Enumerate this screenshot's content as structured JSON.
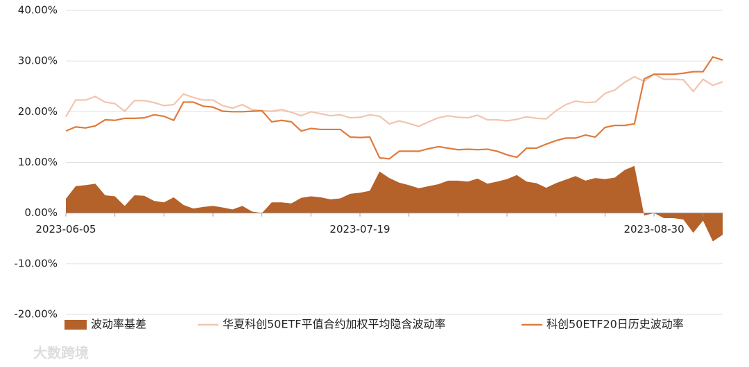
{
  "chart_data": {
    "type": "area_line",
    "categories": [
      "2023-06-05",
      null,
      null,
      null,
      null,
      null,
      null,
      null,
      null,
      null,
      null,
      null,
      null,
      null,
      null,
      null,
      null,
      null,
      null,
      null,
      null,
      null,
      null,
      null,
      null,
      null,
      null,
      null,
      null,
      null,
      "2023-07-19",
      null,
      null,
      null,
      null,
      null,
      null,
      null,
      null,
      null,
      null,
      null,
      null,
      null,
      null,
      null,
      null,
      null,
      null,
      null,
      null,
      null,
      null,
      null,
      null,
      null,
      null,
      null,
      null,
      null,
      "2023-08-30",
      null,
      null,
      null,
      null,
      null,
      null,
      null
    ],
    "series": [
      {
        "name": "波动率基差",
        "kind": "area",
        "color": "#b5612a",
        "values": [
          2.8,
          5.3,
          5.5,
          5.8,
          3.5,
          3.3,
          1.4,
          3.5,
          3.4,
          2.4,
          2.1,
          3.1,
          1.6,
          0.9,
          1.2,
          1.4,
          1.1,
          0.7,
          1.4,
          0.3,
          0.0,
          2.1,
          2.1,
          1.9,
          3.0,
          3.3,
          3.1,
          2.7,
          2.9,
          3.8,
          4.0,
          4.4,
          8.2,
          6.9,
          6.0,
          5.5,
          4.9,
          5.3,
          5.7,
          6.4,
          6.4,
          6.2,
          6.8,
          5.8,
          6.2,
          6.7,
          7.5,
          6.2,
          5.9,
          5.0,
          5.9,
          6.6,
          7.3,
          6.4,
          6.9,
          6.7,
          7.0,
          8.5,
          9.3,
          -0.5,
          0.0,
          -1.0,
          -1.0,
          -1.3,
          -3.9,
          -1.5,
          -5.6,
          -4.3
        ]
      },
      {
        "name": "华夏科创50ETF平值合约加权平均隐含波动率",
        "kind": "line",
        "color": "#f2c4b0",
        "values": [
          19.0,
          22.3,
          22.3,
          23.0,
          21.9,
          21.6,
          20.1,
          22.2,
          22.2,
          21.8,
          21.2,
          21.4,
          23.5,
          22.8,
          22.3,
          22.3,
          21.2,
          20.7,
          21.4,
          20.4,
          20.2,
          20.1,
          20.4,
          19.9,
          19.2,
          20.0,
          19.6,
          19.2,
          19.4,
          18.8,
          18.9,
          19.4,
          19.1,
          17.6,
          18.2,
          17.7,
          17.1,
          18.0,
          18.8,
          19.2,
          18.9,
          18.8,
          19.3,
          18.4,
          18.4,
          18.2,
          18.5,
          19.0,
          18.7,
          18.6,
          20.2,
          21.4,
          22.1,
          21.8,
          21.9,
          23.6,
          24.3,
          25.8,
          26.9,
          26.0,
          27.4,
          26.4,
          26.4,
          26.3,
          24.0,
          26.4,
          25.2,
          25.9
        ]
      },
      {
        "name": "科创50ETF20日历史波动率",
        "kind": "line",
        "color": "#e07a3a",
        "values": [
          16.2,
          17.0,
          16.8,
          17.2,
          18.4,
          18.3,
          18.7,
          18.7,
          18.8,
          19.4,
          19.1,
          18.3,
          21.9,
          21.9,
          21.1,
          20.9,
          20.1,
          20.0,
          20.0,
          20.1,
          20.2,
          18.0,
          18.3,
          18.0,
          16.2,
          16.7,
          16.5,
          16.5,
          16.5,
          15.0,
          14.9,
          15.0,
          10.9,
          10.7,
          12.2,
          12.2,
          12.2,
          12.7,
          13.1,
          12.8,
          12.5,
          12.6,
          12.5,
          12.6,
          12.2,
          11.5,
          11.0,
          12.8,
          12.8,
          13.6,
          14.3,
          14.8,
          14.8,
          15.4,
          15.0,
          16.9,
          17.3,
          17.3,
          17.6,
          26.5,
          27.4,
          27.4,
          27.4,
          27.6,
          27.9,
          27.9,
          30.8,
          30.2
        ]
      }
    ],
    "ylim": [
      -20,
      40
    ],
    "yticks": [
      {
        "value": 40,
        "label": "40.00%"
      },
      {
        "value": 30,
        "label": "30.00%"
      },
      {
        "value": 20,
        "label": "20.00%"
      },
      {
        "value": 10,
        "label": "10.00%"
      },
      {
        "value": 0,
        "label": "0.00%"
      },
      {
        "value": -10,
        "label": "-10.00%"
      },
      {
        "value": -20,
        "label": "-20.00%"
      }
    ],
    "grid": true,
    "legend": "bottom",
    "watermark": "大数跨境"
  }
}
